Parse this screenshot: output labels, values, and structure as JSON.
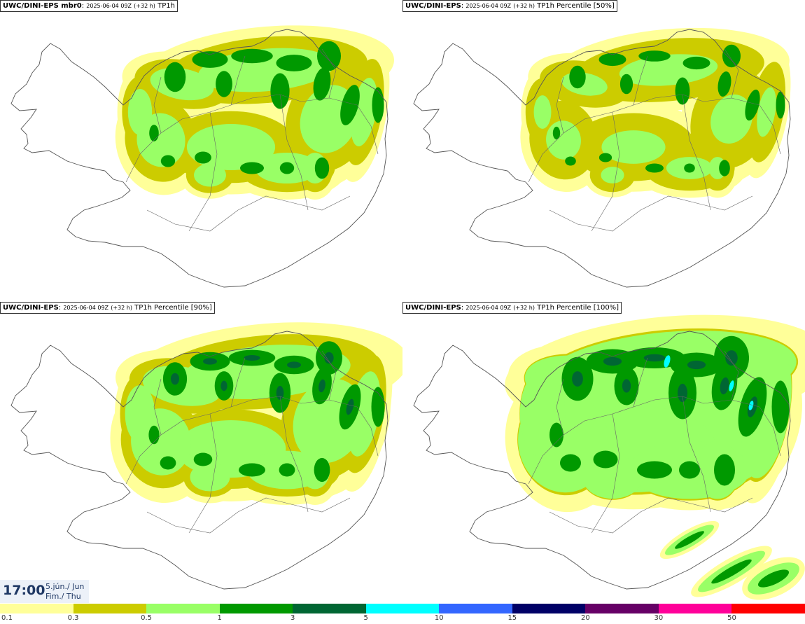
{
  "panels": [
    {
      "model": "UWC/DINI-EPS mbr0",
      "run": "2025-06-04 09Z",
      "lead": "(+32 h)",
      "field": "TP1h",
      "coverage": 0.9,
      "intensity": 0.85
    },
    {
      "model": "UWC/DINI-EPS",
      "run": "2025-06-04 09Z",
      "lead": "(+32 h)",
      "field": "TP1h Percentile [50%]",
      "coverage": 0.85,
      "intensity": 0.65
    },
    {
      "model": "UWC/DINI-EPS",
      "run": "2025-06-04 09Z",
      "lead": "(+32 h)",
      "field": "TP1h Percentile [90%]",
      "coverage": 1.0,
      "intensity": 0.95
    },
    {
      "model": "UWC/DINI-EPS",
      "run": "2025-06-04 09Z",
      "lead": "(+32 h)",
      "field": "TP1h Percentile [100%]",
      "coverage": 1.15,
      "intensity": 1.25
    }
  ],
  "valid_time": {
    "time": "17:00",
    "date_line1": "5.jún./ Jun",
    "date_line2": "Fim./ Thu"
  },
  "legend": {
    "ticks": [
      "0.1",
      "0.3",
      "0.5",
      "1",
      "3",
      "5",
      "10",
      "15",
      "20",
      "30",
      "50"
    ],
    "colors": [
      "#ffff99",
      "#cccc00",
      "#99ff66",
      "#009900",
      "#006633",
      "#00ffff",
      "#3366ff",
      "#000066",
      "#660066",
      "#ff0099",
      "#ff0000"
    ]
  }
}
